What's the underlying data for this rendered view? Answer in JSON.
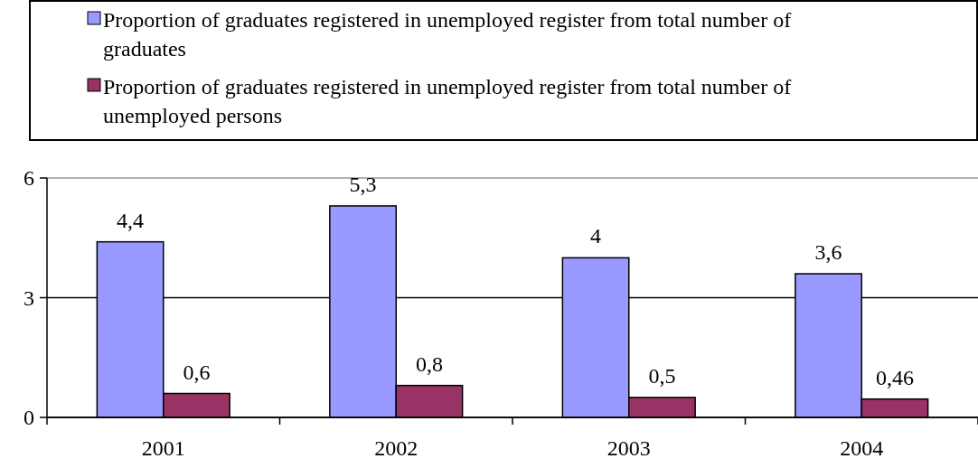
{
  "chart_data": {
    "type": "bar",
    "categories": [
      "2001",
      "2002",
      "2003",
      "2004"
    ],
    "series": [
      {
        "name": "Proportion of graduates registered in unemployed register from total number of graduates",
        "color": "#9999ff",
        "values": [
          4.4,
          5.3,
          4,
          3.6
        ],
        "value_labels": [
          "4,4",
          "5,3",
          "4",
          "3,6"
        ]
      },
      {
        "name": "Proportion of graduates registered in unemployed register from total number of unemployed persons",
        "color": "#993366",
        "values": [
          0.6,
          0.8,
          0.5,
          0.46
        ],
        "value_labels": [
          "0,6",
          "0,8",
          "0,5",
          "0,46"
        ]
      }
    ],
    "ylim": [
      0,
      6
    ],
    "yticks": [
      0,
      3,
      6
    ],
    "grid": "y",
    "legend": "top"
  }
}
